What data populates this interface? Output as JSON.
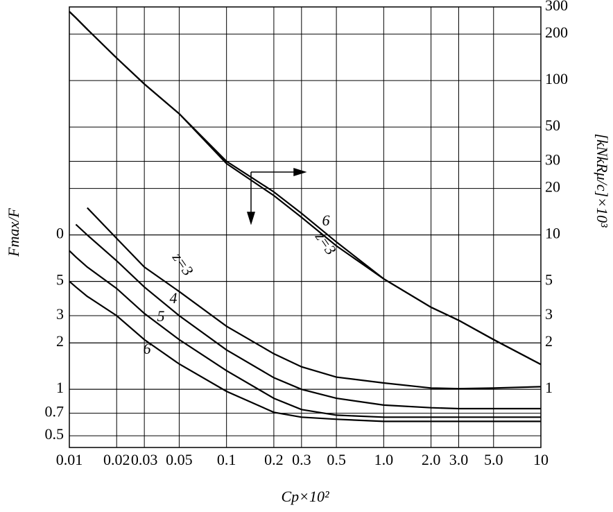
{
  "chart_data": {
    "type": "line",
    "x_label": "Cp×10²",
    "y_label": "Fmax/F",
    "y2_label": "[kNkRμ/c]×10³",
    "x": [
      0.01,
      0.011,
      0.013,
      0.02,
      0.03,
      0.05,
      0.1,
      0.2,
      0.3,
      0.5,
      1,
      2,
      3,
      5,
      10
    ],
    "xlim": [
      0.01,
      10
    ],
    "xticks": [
      0.01,
      0.02,
      0.03,
      0.05,
      0.1,
      0.2,
      0.3,
      0.5,
      {
        "value": 1,
        "label": "1.0"
      },
      {
        "value": 2,
        "label": "2.0"
      },
      {
        "value": 3,
        "label": "3.0"
      },
      {
        "value": 5,
        "label": "5.0"
      },
      10
    ],
    "xscale": "log",
    "ylim": [
      0.42,
      300
    ],
    "yticks": [
      {
        "value": 10,
        "label": "0"
      },
      5,
      3,
      2,
      1,
      0.7,
      0.5
    ],
    "yscale": "log",
    "y2lim": [
      0.42,
      300
    ],
    "y2ticks": [
      300,
      200,
      100,
      50,
      30,
      20,
      10,
      5,
      3,
      2,
      1
    ],
    "grid": true,
    "series": [
      {
        "name": "6",
        "color": "#000000",
        "axis": "y2",
        "values": [
          280,
          255,
          215,
          140,
          95,
          61,
          30,
          19,
          13.8,
          9,
          5.2,
          3.4,
          2.8,
          2.1,
          1.45
        ]
      },
      {
        "name": "z=3",
        "color": "#000000",
        "axis": "y2",
        "values": [
          280,
          255,
          215,
          140,
          95,
          61,
          29,
          18,
          13,
          8.5,
          5.2,
          3.4,
          2.8,
          2.1,
          1.45
        ]
      },
      {
        "name": "z=3",
        "color": "#000000",
        "values": [
          null,
          null,
          15,
          9.5,
          6.2,
          4.3,
          2.56,
          1.7,
          1.4,
          1.2,
          1.1,
          1.02,
          1.01,
          1.02,
          1.04
        ]
      },
      {
        "name": "4",
        "color": "#000000",
        "values": [
          null,
          11.7,
          10,
          6.8,
          4.6,
          3.0,
          1.8,
          1.19,
          1.0,
          0.875,
          0.79,
          0.76,
          0.75,
          0.75,
          0.75
        ]
      },
      {
        "name": "5",
        "color": "#000000",
        "values": [
          7.9,
          7.2,
          6.2,
          4.5,
          3.1,
          2.1,
          1.32,
          0.875,
          0.74,
          0.68,
          0.66,
          0.66,
          0.66,
          0.66,
          0.66
        ]
      },
      {
        "name": "6",
        "color": "#000000",
        "values": [
          5,
          4.6,
          4.0,
          3.0,
          2.1,
          1.46,
          0.97,
          0.71,
          0.66,
          0.64,
          0.62,
          0.62,
          0.62,
          0.62,
          0.62
        ]
      }
    ]
  }
}
